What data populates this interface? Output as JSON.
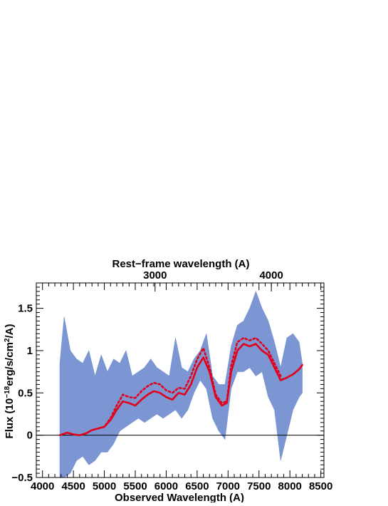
{
  "chart_data": {
    "type": "line",
    "title": "",
    "xlabel": "Observed Wavelength (A)",
    "ylabel_prefix": "Flux (10",
    "ylabel_exp": "−18",
    "ylabel_mid": "erg/s/cm",
    "ylabel_exp2": "2",
    "ylabel_suffix": "/A)",
    "top_axis_label": "Rest−frame wavelength (A)",
    "xlim": [
      3900,
      8550
    ],
    "ylim": [
      -0.5,
      1.8
    ],
    "x_ticks": [
      4000,
      4500,
      5000,
      5500,
      6000,
      6500,
      7000,
      7500,
      8000,
      8500
    ],
    "x_tick_labels": [
      "4000",
      "4500",
      "5000",
      "5500",
      "6000",
      "6500",
      "7000",
      "7500",
      "8000",
      "8500"
    ],
    "y_ticks": [
      -0.5,
      0,
      0.5,
      1,
      1.5
    ],
    "y_tick_labels": [
      "−0.5",
      "0",
      "0.5",
      "1",
      "1.5"
    ],
    "top_ticks_observed": [
      5820,
      7700
    ],
    "top_tick_labels": [
      "3000",
      "4000"
    ],
    "zero_line": 0,
    "grid": false,
    "colors": {
      "spectrum": "#7b96d2",
      "model": "#e3001b",
      "zero_line": "#000000"
    },
    "series": [
      {
        "style": "band",
        "x": [
          4280,
          4350,
          4450,
          4550,
          4650,
          4750,
          4850,
          4950,
          5050,
          5150,
          5250,
          5350,
          5450,
          5550,
          5650,
          5750,
          5850,
          5950,
          6050,
          6150,
          6250,
          6350,
          6450,
          6550,
          6650,
          6750,
          6850,
          6950,
          7050,
          7150,
          7250,
          7350,
          7450,
          7550,
          7650,
          7750,
          7850,
          7950,
          8050,
          8150,
          8200
        ],
        "upper": [
          0.85,
          1.4,
          1.0,
          0.9,
          0.85,
          1.0,
          0.7,
          0.95,
          0.75,
          0.9,
          0.85,
          1.0,
          0.7,
          0.75,
          0.8,
          0.9,
          0.8,
          0.75,
          0.7,
          1.15,
          0.8,
          0.75,
          0.9,
          1.0,
          1.2,
          0.7,
          0.6,
          0.6,
          1.05,
          1.3,
          1.35,
          1.5,
          1.7,
          1.5,
          1.35,
          1.1,
          0.8,
          1.15,
          1.2,
          1.1,
          0.85
        ],
        "lower": [
          -0.5,
          -0.5,
          -0.45,
          -0.3,
          -0.25,
          -0.35,
          -0.3,
          -0.2,
          -0.2,
          -0.1,
          0.05,
          0.1,
          0.15,
          0.2,
          0.15,
          0.2,
          0.25,
          0.2,
          0.25,
          0.3,
          0.2,
          0.3,
          0.5,
          0.65,
          0.55,
          0.2,
          0.05,
          -0.05,
          0.55,
          0.75,
          0.75,
          0.8,
          0.7,
          0.75,
          0.45,
          0.3,
          -0.3,
          0.0,
          0.3,
          0.45,
          0.5
        ]
      },
      {
        "style": "solid",
        "x": [
          4280,
          4400,
          4500,
          4600,
          4700,
          4800,
          4900,
          5000,
          5100,
          5200,
          5300,
          5400,
          5500,
          5600,
          5700,
          5800,
          5900,
          6000,
          6100,
          6200,
          6300,
          6400,
          6500,
          6600,
          6700,
          6800,
          6900,
          6980,
          7050,
          7150,
          7250,
          7350,
          7450,
          7550,
          7650,
          7750,
          7850,
          7950,
          8050,
          8150,
          8200
        ],
        "y": [
          0.0,
          0.03,
          0.01,
          0.0,
          0.02,
          0.06,
          0.08,
          0.1,
          0.18,
          0.3,
          0.4,
          0.38,
          0.35,
          0.42,
          0.48,
          0.52,
          0.5,
          0.45,
          0.42,
          0.5,
          0.48,
          0.6,
          0.8,
          0.92,
          0.75,
          0.45,
          0.35,
          0.38,
          0.75,
          1.0,
          1.08,
          1.05,
          1.08,
          1.0,
          0.95,
          0.8,
          0.65,
          0.68,
          0.72,
          0.78,
          0.83
        ]
      },
      {
        "style": "dotted",
        "x": [
          4900,
          5000,
          5100,
          5200,
          5300,
          5400,
          5500,
          5600,
          5700,
          5800,
          5900,
          6000,
          6100,
          6200,
          6300,
          6400,
          6500,
          6600,
          6700,
          6800,
          6900,
          6980,
          7050,
          7150,
          7250,
          7350,
          7450,
          7550,
          7650,
          7750,
          7850
        ],
        "y": [
          0.08,
          0.1,
          0.2,
          0.35,
          0.48,
          0.45,
          0.44,
          0.52,
          0.58,
          0.62,
          0.6,
          0.53,
          0.5,
          0.56,
          0.55,
          0.7,
          0.9,
          1.03,
          0.8,
          0.48,
          0.38,
          0.4,
          0.82,
          1.1,
          1.15,
          1.12,
          1.15,
          1.08,
          1.0,
          0.85,
          0.7
        ]
      }
    ]
  }
}
